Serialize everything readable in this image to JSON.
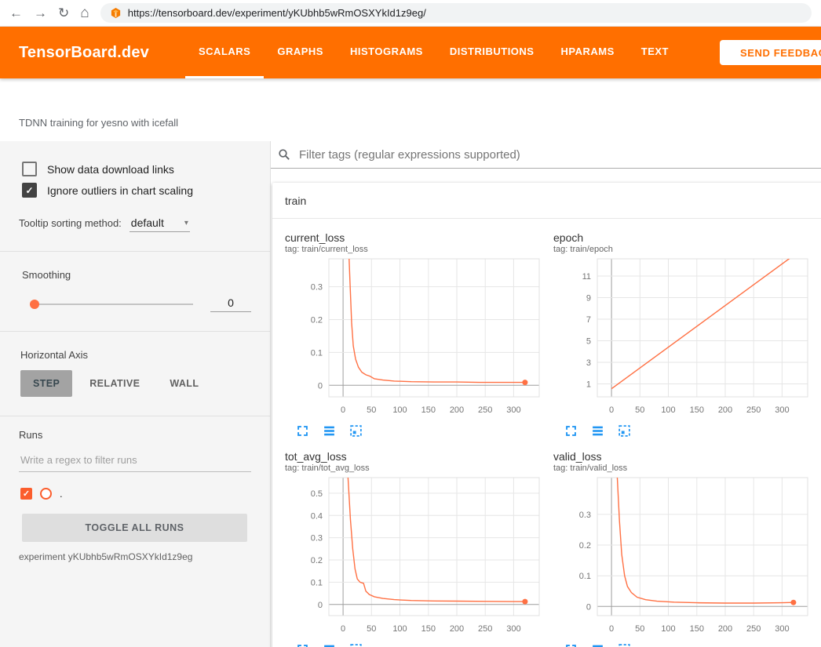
{
  "browser": {
    "url": "https://tensorboard.dev/experiment/yKUbhb5wRmOSXYkId1z9eg/"
  },
  "header": {
    "brand": "TensorBoard.dev",
    "tabs": [
      {
        "label": "SCALARS"
      },
      {
        "label": "GRAPHS"
      },
      {
        "label": "HISTOGRAMS"
      },
      {
        "label": "DISTRIBUTIONS"
      },
      {
        "label": "HPARAMS"
      },
      {
        "label": "TEXT"
      }
    ],
    "active_tab": "SCALARS",
    "feedback_label": "SEND FEEDBACK"
  },
  "experiment": {
    "description": "TDNN training for yesno with icefall",
    "footer": "experiment yKUbhb5wRmOSXYkId1z9eg"
  },
  "sidebar": {
    "show_download": {
      "label": "Show data download links",
      "checked": false
    },
    "ignore_outliers": {
      "label": "Ignore outliers in chart scaling",
      "checked": true
    },
    "check_glyph": "✓",
    "tooltip_label": "Tooltip sorting method:",
    "tooltip_value": "default",
    "caret": "▾",
    "smoothing_label": "Smoothing",
    "smoothing_value": "0",
    "axis_label": "Horizontal Axis",
    "axis_options": [
      {
        "label": "STEP"
      },
      {
        "label": "RELATIVE"
      },
      {
        "label": "WALL"
      }
    ],
    "axis_selected": "STEP",
    "runs_label": "Runs",
    "runs_filter_placeholder": "Write a regex to filter runs",
    "run_name": ".",
    "toggle_all_label": "TOGGLE ALL RUNS"
  },
  "main": {
    "filter_placeholder": "Filter tags (regular expressions supported)",
    "group_label": "train"
  },
  "browser_glyphs": {
    "back": "←",
    "forward": "→",
    "reload": "↻",
    "home": "⌂"
  },
  "chart_data": [
    {
      "type": "line",
      "title": "current_loss",
      "tag": "tag: train/current_loss",
      "xlim": [
        -25,
        345
      ],
      "ylim": [
        -0.035,
        0.385
      ],
      "xticks": [
        0,
        50,
        100,
        150,
        200,
        250,
        300
      ],
      "yticks": [
        0,
        0.1,
        0.2,
        0.3
      ],
      "color": "#ff7043",
      "end_dot": true,
      "points": [
        [
          7,
          0.55
        ],
        [
          12,
          0.32
        ],
        [
          15,
          0.19
        ],
        [
          18,
          0.12
        ],
        [
          22,
          0.08
        ],
        [
          27,
          0.055
        ],
        [
          33,
          0.04
        ],
        [
          40,
          0.032
        ],
        [
          47,
          0.028
        ],
        [
          55,
          0.02
        ],
        [
          70,
          0.016
        ],
        [
          90,
          0.013
        ],
        [
          120,
          0.011
        ],
        [
          160,
          0.01
        ],
        [
          200,
          0.01
        ],
        [
          240,
          0.009
        ],
        [
          280,
          0.009
        ],
        [
          320,
          0.009
        ]
      ]
    },
    {
      "type": "line",
      "title": "epoch",
      "tag": "tag: train/epoch",
      "xlim": [
        -25,
        345
      ],
      "ylim": [
        -0.2,
        12.6
      ],
      "xticks": [
        0,
        50,
        100,
        150,
        200,
        250,
        300
      ],
      "yticks": [
        1,
        3,
        5,
        7,
        9,
        11
      ],
      "color": "#ff7043",
      "end_dot": false,
      "points": [
        [
          0,
          0.55
        ],
        [
          320,
          12.9
        ]
      ]
    },
    {
      "type": "line",
      "title": "tot_avg_loss",
      "tag": "tag: train/tot_avg_loss",
      "xlim": [
        -25,
        345
      ],
      "ylim": [
        -0.05,
        0.57
      ],
      "xticks": [
        0,
        50,
        100,
        150,
        200,
        250,
        300
      ],
      "yticks": [
        0,
        0.1,
        0.2,
        0.3,
        0.4,
        0.5
      ],
      "color": "#ff7043",
      "end_dot": true,
      "points": [
        [
          8,
          0.6
        ],
        [
          13,
          0.38
        ],
        [
          17,
          0.25
        ],
        [
          21,
          0.16
        ],
        [
          25,
          0.115
        ],
        [
          30,
          0.1
        ],
        [
          36,
          0.095
        ],
        [
          40,
          0.06
        ],
        [
          46,
          0.045
        ],
        [
          55,
          0.035
        ],
        [
          70,
          0.027
        ],
        [
          90,
          0.022
        ],
        [
          120,
          0.018
        ],
        [
          160,
          0.016
        ],
        [
          200,
          0.015
        ],
        [
          250,
          0.014
        ],
        [
          300,
          0.013
        ],
        [
          320,
          0.013
        ]
      ]
    },
    {
      "type": "line",
      "title": "valid_loss",
      "tag": "tag: train/valid_loss",
      "xlim": [
        -25,
        345
      ],
      "ylim": [
        -0.03,
        0.42
      ],
      "xticks": [
        0,
        50,
        100,
        150,
        200,
        250,
        300
      ],
      "yticks": [
        0,
        0.1,
        0.2,
        0.3
      ],
      "color": "#ff7043",
      "end_dot": true,
      "points": [
        [
          8,
          0.5
        ],
        [
          14,
          0.28
        ],
        [
          18,
          0.17
        ],
        [
          23,
          0.1
        ],
        [
          28,
          0.065
        ],
        [
          35,
          0.045
        ],
        [
          45,
          0.03
        ],
        [
          60,
          0.022
        ],
        [
          80,
          0.017
        ],
        [
          110,
          0.014
        ],
        [
          150,
          0.012
        ],
        [
          200,
          0.011
        ],
        [
          250,
          0.011
        ],
        [
          300,
          0.012
        ],
        [
          320,
          0.013
        ]
      ]
    }
  ],
  "colors": {
    "header_orange": "#ff6f00",
    "run_color": "#ff7043",
    "run_swatch": "#fb5d2c",
    "icon_blue": "#2196f3"
  }
}
